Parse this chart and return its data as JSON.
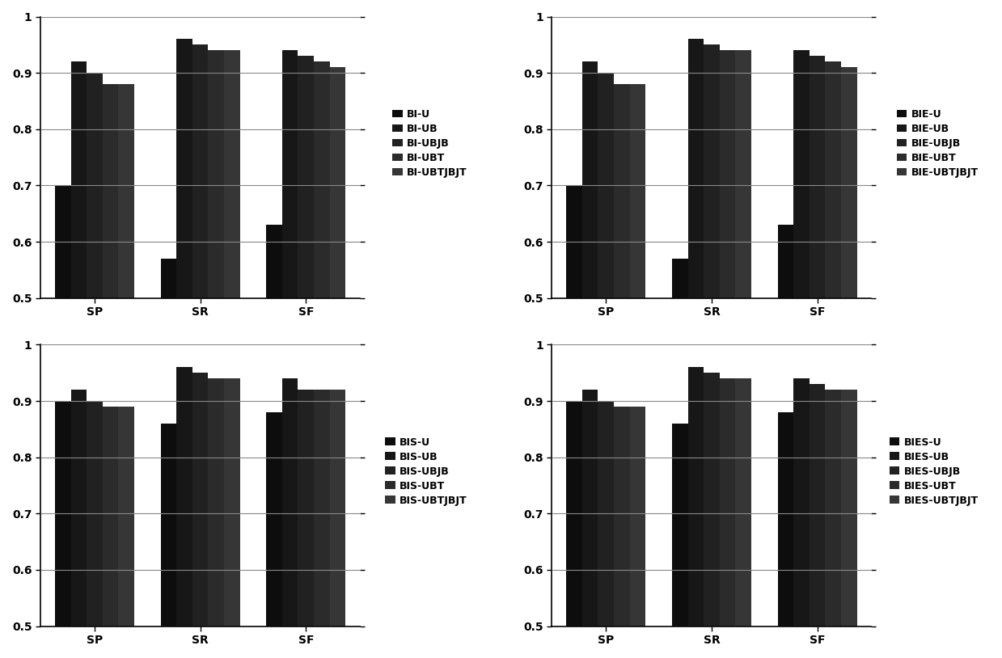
{
  "subplots": [
    {
      "prefix": "BI",
      "legend_labels": [
        "BI-U",
        "BI-UB",
        "BI-UBJB",
        "BI-UBT",
        "BI-UBTJBJT"
      ],
      "categories": [
        "SP",
        "SR",
        "SF"
      ],
      "series": [
        [
          0.7,
          0.57,
          0.63
        ],
        [
          0.92,
          0.96,
          0.94
        ],
        [
          0.9,
          0.95,
          0.93
        ],
        [
          0.88,
          0.94,
          0.92
        ],
        [
          0.88,
          0.94,
          0.91
        ]
      ]
    },
    {
      "prefix": "BIE",
      "legend_labels": [
        "BIE-U",
        "BIE-UB",
        "BIE-UBJB",
        "BIE-UBT",
        "BIE-UBTJBJT"
      ],
      "categories": [
        "SP",
        "SR",
        "SF"
      ],
      "series": [
        [
          0.7,
          0.57,
          0.63
        ],
        [
          0.92,
          0.96,
          0.94
        ],
        [
          0.9,
          0.95,
          0.93
        ],
        [
          0.88,
          0.94,
          0.92
        ],
        [
          0.88,
          0.94,
          0.91
        ]
      ]
    },
    {
      "prefix": "BIS",
      "legend_labels": [
        "BIS-U",
        "BIS-UB",
        "BIS-UBJB",
        "BIS-UBT",
        "BIS-UBTJBJT"
      ],
      "categories": [
        "SP",
        "SR",
        "SF"
      ],
      "series": [
        [
          0.9,
          0.86,
          0.88
        ],
        [
          0.92,
          0.96,
          0.94
        ],
        [
          0.9,
          0.95,
          0.92
        ],
        [
          0.89,
          0.94,
          0.92
        ],
        [
          0.89,
          0.94,
          0.92
        ]
      ]
    },
    {
      "prefix": "BIES",
      "legend_labels": [
        "BIES-U",
        "BIES-UB",
        "BIES-UBJB",
        "BIES-UBT",
        "BIES-UBTJBJT"
      ],
      "categories": [
        "SP",
        "SR",
        "SF"
      ],
      "series": [
        [
          0.9,
          0.86,
          0.88
        ],
        [
          0.92,
          0.96,
          0.94
        ],
        [
          0.9,
          0.95,
          0.93
        ],
        [
          0.89,
          0.94,
          0.92
        ],
        [
          0.89,
          0.94,
          0.92
        ]
      ]
    }
  ],
  "ylim": [
    0.5,
    1.0
  ],
  "yticks": [
    0.5,
    0.6,
    0.7,
    0.8,
    0.9,
    1.0
  ],
  "ytick_labels": [
    "0.5",
    "0.6",
    "0.7",
    "0.8",
    "0.9",
    "1"
  ],
  "bar_colors": [
    "#111111",
    "#222222",
    "#333333",
    "#444444",
    "#555555"
  ],
  "bar_width": 0.15,
  "background_color": "#ffffff",
  "grid_color": "#888888",
  "legend_marker_size": 8,
  "fontsize": 10,
  "legend_fontsize": 9
}
